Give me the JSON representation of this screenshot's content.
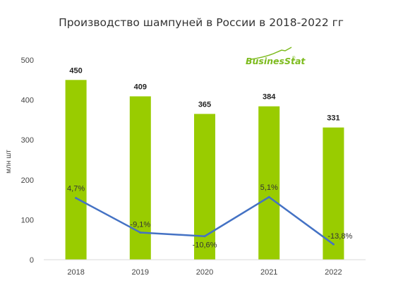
{
  "chart_data": {
    "type": "bar",
    "title": "Производство шампуней в России  в 2018-2022 гг",
    "ylabel": "млн шт",
    "categories": [
      "2018",
      "2019",
      "2020",
      "2021",
      "2022"
    ],
    "values": [
      450,
      409,
      365,
      384,
      331
    ],
    "value_labels": [
      "450",
      "409",
      "365",
      "384",
      "331"
    ],
    "ylim": [
      0,
      500
    ],
    "yticks": [
      0,
      100,
      200,
      300,
      400,
      500
    ],
    "bar_color": "#99cc00",
    "growth": {
      "type": "line",
      "values": [
        4.7,
        -9.1,
        -10.6,
        5.1,
        -13.8
      ],
      "labels": [
        "4,7%",
        "-9,1%",
        "-10,6%",
        "5,1%",
        "-13,8%"
      ],
      "color": "#4472c4"
    },
    "grid": false
  },
  "logo": {
    "text": "BusinesStat",
    "mark": "®",
    "icon": "rising-line-logo-icon",
    "color": "#7dbb1e"
  }
}
